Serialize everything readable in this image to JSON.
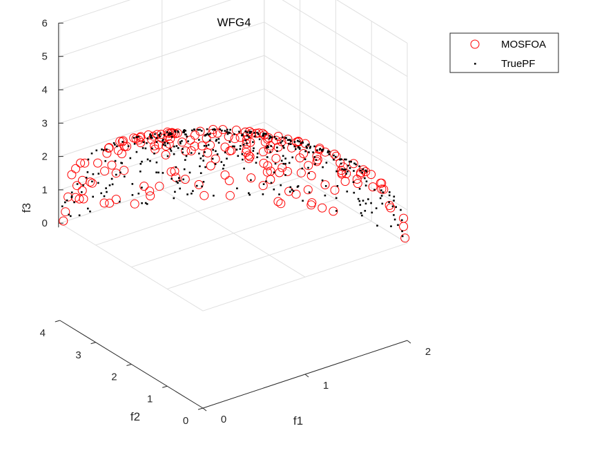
{
  "chart_data": {
    "type": "scatter3d",
    "title": "WFG4",
    "xlabel": "f1",
    "ylabel": "f2",
    "zlabel": "f3",
    "xlim": [
      0,
      2
    ],
    "ylim": [
      0,
      4
    ],
    "zlim": [
      0,
      6
    ],
    "xticks": [
      0,
      1,
      2
    ],
    "yticks": [
      0,
      1,
      2,
      3,
      4
    ],
    "zticks": [
      0,
      1,
      2,
      3,
      4,
      5,
      6
    ],
    "grid": true,
    "legend_position": "top-right",
    "series": [
      {
        "name": "MOSFOA",
        "marker": "open-circle",
        "color": "#ff0000",
        "generator": "ellipsoid",
        "radii": [
          2,
          4,
          6
        ],
        "count": 190,
        "seed": 7
      },
      {
        "name": "TruePF",
        "marker": "dot",
        "color": "#000000",
        "generator": "ellipsoid",
        "radii": [
          2,
          4,
          6
        ],
        "count": 420,
        "seed": 19
      }
    ]
  },
  "colors": {
    "axis": "#262626",
    "grid": "#dfdfdf"
  }
}
